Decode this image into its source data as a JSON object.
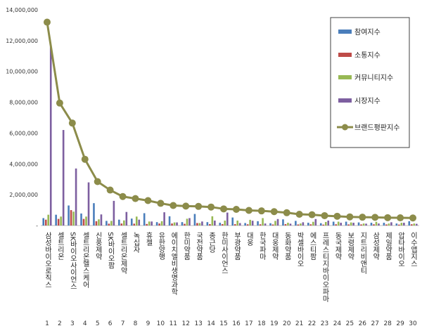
{
  "chart_data": {
    "type": "bar",
    "title": "",
    "xlabel": "",
    "ylabel": "",
    "ylim": [
      0,
      14000000
    ],
    "y_ticks": [
      "-",
      "2,000,000",
      "4,000,000",
      "6,000,000",
      "8,000,000",
      "10,000,000",
      "12,000,000",
      "14,000,000"
    ],
    "y_tick_values": [
      0,
      2000000,
      4000000,
      6000000,
      8000000,
      10000000,
      12000000,
      14000000
    ],
    "grid": false,
    "legend_position": "top-right",
    "x": [
      "1",
      "2",
      "3",
      "4",
      "5",
      "6",
      "7",
      "8",
      "9",
      "10",
      "11",
      "12",
      "13",
      "14",
      "15",
      "16",
      "17",
      "18",
      "19",
      "20",
      "21",
      "22",
      "23",
      "24",
      "25",
      "26",
      "27",
      "28",
      "29",
      "30"
    ],
    "categories": [
      "삼성바이오로직스",
      "셀트리온",
      "SK바이오사이언스",
      "셀트리온헬스케어",
      "신풍제약",
      "SK바이오팜",
      "셀트리온제약",
      "녹십자",
      "휴젤",
      "유한양행",
      "에이치엘비생명과학",
      "한미약품",
      "국전약품",
      "종근당",
      "한미사이언스",
      "부광약품",
      "대웅",
      "한국파마",
      "대웅제약",
      "동화약품",
      "박셀바이오",
      "에스티팜",
      "프레스티지바이오파마",
      "동국제약",
      "보령제약",
      "지트리비앤티",
      "삼성제약",
      "제일약품",
      "압타바이오",
      "이수앱지스"
    ],
    "series": [
      {
        "name": "참여지수",
        "color": "#4a7ebb",
        "values": [
          480000,
          700000,
          1300000,
          780000,
          1450000,
          300000,
          380000,
          450000,
          800000,
          220000,
          600000,
          220000,
          750000,
          220000,
          180000,
          520000,
          160000,
          280000,
          150000,
          400000,
          300000,
          180000,
          150000,
          250000,
          250000,
          200000,
          180000,
          180000,
          130000,
          280000
        ]
      },
      {
        "name": "소통지수",
        "color": "#be4b48",
        "values": [
          380000,
          430000,
          1000000,
          430000,
          280000,
          120000,
          130000,
          120000,
          100000,
          130000,
          130000,
          110000,
          160000,
          90000,
          90000,
          90000,
          80000,
          80000,
          70000,
          90000,
          70000,
          80000,
          60000,
          80000,
          70000,
          70000,
          80000,
          70000,
          60000,
          80000
        ]
      },
      {
        "name": "커뮤니티지수",
        "color": "#98b954",
        "values": [
          700000,
          580000,
          900000,
          580000,
          400000,
          300000,
          330000,
          580000,
          260000,
          280000,
          200000,
          440000,
          160000,
          600000,
          320000,
          320000,
          370000,
          480000,
          300000,
          180000,
          130000,
          240000,
          230000,
          250000,
          200000,
          130000,
          240000,
          130000,
          180000,
          130000
        ]
      },
      {
        "name": "시장지수",
        "color": "#7d5fa0",
        "values": [
          11600000,
          6200000,
          3700000,
          2800000,
          720000,
          1600000,
          880000,
          380000,
          260000,
          860000,
          200000,
          480000,
          260000,
          320000,
          840000,
          160000,
          310000,
          130000,
          420000,
          120000,
          210000,
          420000,
          320000,
          180000,
          180000,
          120000,
          130000,
          210000,
          180000,
          110000
        ]
      }
    ],
    "line": {
      "name": "브랜드평판지수",
      "color": "#8c8c4a",
      "values": [
        13200000,
        7950000,
        6650000,
        4300000,
        2850000,
        2300000,
        1880000,
        1750000,
        1620000,
        1440000,
        1300000,
        1260000,
        1240000,
        1200000,
        1080000,
        1050000,
        980000,
        950000,
        900000,
        830000,
        730000,
        700000,
        640000,
        600000,
        560000,
        540000,
        530000,
        510000,
        500000,
        490000
      ]
    }
  }
}
